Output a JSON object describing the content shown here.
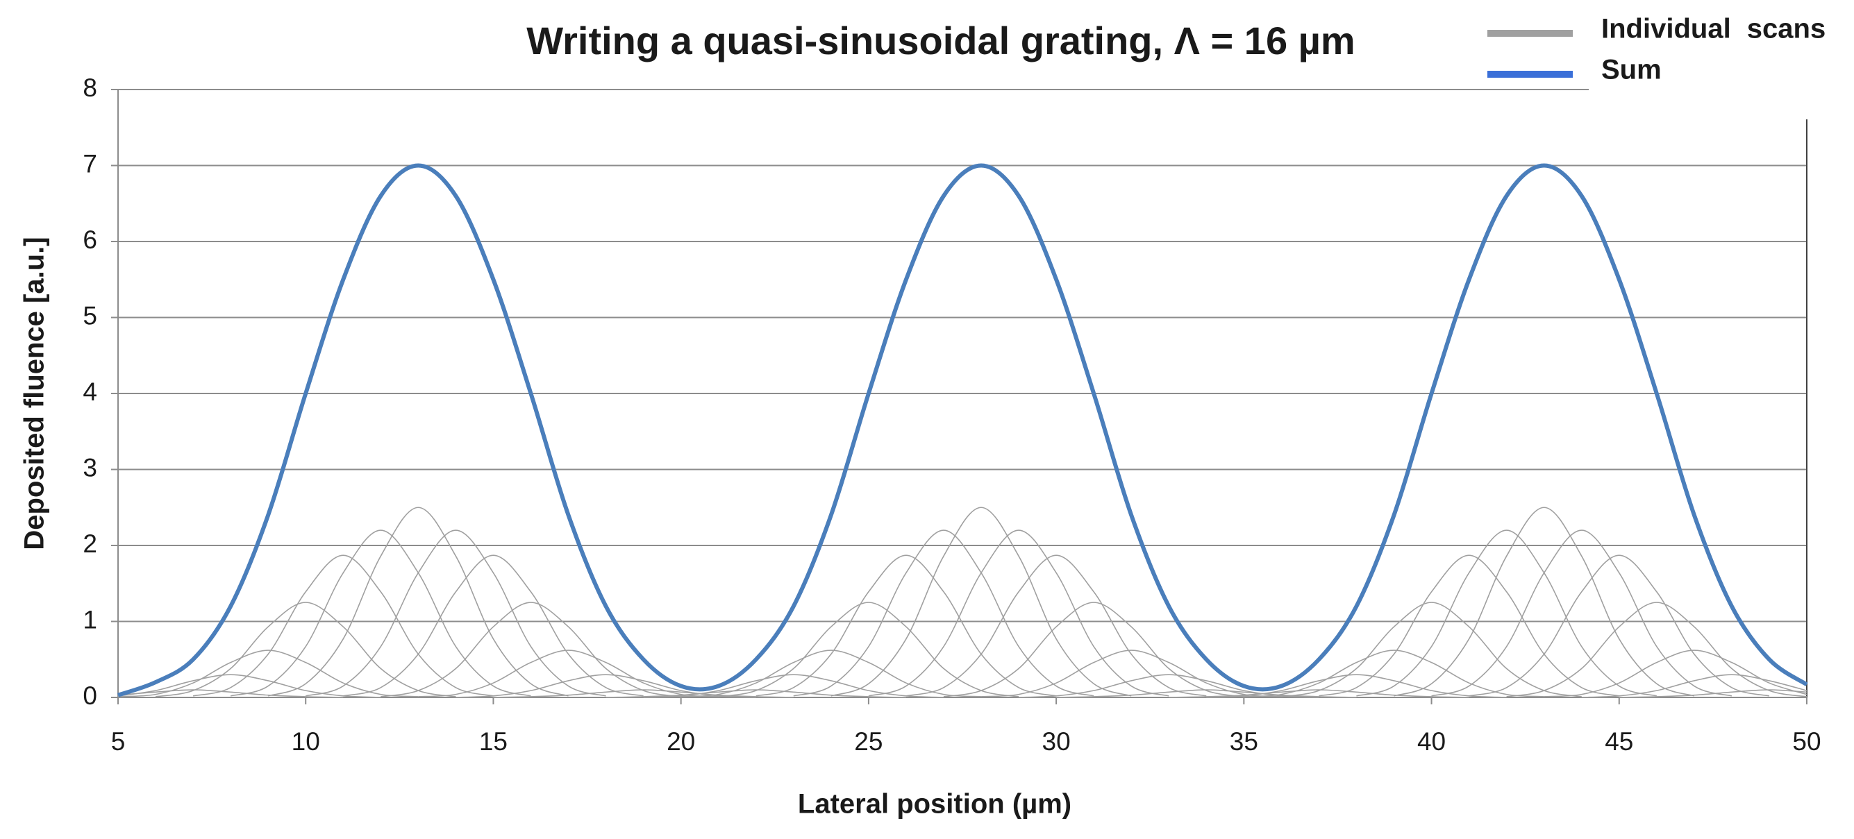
{
  "chart_data": {
    "type": "line",
    "title": "Writing a quasi-sinusoidal grating, Λ = 16 µm",
    "x_label": "Lateral position (µm)",
    "y_label": "Deposited fluence [a.u.]",
    "xlim": [
      5,
      50
    ],
    "xticks": [
      5,
      10,
      15,
      20,
      25,
      30,
      35,
      40,
      45,
      50
    ],
    "ylim": [
      0,
      8
    ],
    "yticks": [
      0,
      1,
      2,
      3,
      4,
      5,
      6,
      7,
      8
    ],
    "grid": true,
    "legend": "top-right",
    "series": [
      {
        "name": "Individual scans",
        "color": "#a0a0a0",
        "scans": [
          {
            "x": [
              5,
              6,
              7,
              8,
              9,
              10,
              11
            ],
            "values": [
              0.03,
              0.07,
              0.1,
              0.07,
              0.03,
              0.01,
              0
            ]
          },
          {
            "x": [
              5,
              6,
              7,
              8,
              9,
              10,
              11,
              12
            ],
            "values": [
              0.02,
              0.09,
              0.22,
              0.3,
              0.22,
              0.09,
              0.02,
              0
            ]
          },
          {
            "x": [
              5,
              6,
              7,
              8,
              9,
              10,
              11,
              12,
              13
            ],
            "values": [
              0.01,
              0.04,
              0.19,
              0.46,
              0.62,
              0.46,
              0.19,
              0.04,
              0.01
            ]
          },
          {
            "x": [
              6,
              7,
              8,
              9,
              10,
              11,
              12,
              13,
              14
            ],
            "values": [
              0.01,
              0.09,
              0.38,
              0.93,
              1.25,
              0.93,
              0.38,
              0.09,
              0.01
            ]
          },
          {
            "x": [
              7,
              8,
              9,
              10,
              11,
              12,
              13,
              14,
              15
            ],
            "values": [
              0.02,
              0.13,
              0.57,
              1.39,
              1.87,
              1.39,
              0.57,
              0.13,
              0.02
            ]
          },
          {
            "x": [
              8,
              9,
              10,
              11,
              12,
              13,
              14,
              15,
              16
            ],
            "values": [
              0.02,
              0.15,
              0.67,
              1.64,
              2.2,
              1.64,
              0.67,
              0.15,
              0.02
            ]
          },
          {
            "x": [
              9,
              10,
              11,
              12,
              13,
              14,
              15,
              16,
              17
            ],
            "values": [
              0.02,
              0.18,
              0.77,
              1.86,
              2.5,
              1.86,
              0.77,
              0.18,
              0.02
            ]
          },
          {
            "x": [
              10,
              11,
              12,
              13,
              14,
              15,
              16,
              17,
              18
            ],
            "values": [
              0.02,
              0.15,
              0.67,
              1.64,
              2.2,
              1.64,
              0.67,
              0.15,
              0.02
            ]
          },
          {
            "x": [
              11,
              12,
              13,
              14,
              15,
              16,
              17,
              18,
              19
            ],
            "values": [
              0.02,
              0.13,
              0.57,
              1.39,
              1.87,
              1.39,
              0.57,
              0.13,
              0.02
            ]
          },
          {
            "x": [
              12,
              13,
              14,
              15,
              16,
              17,
              18,
              19,
              20
            ],
            "values": [
              0.01,
              0.09,
              0.38,
              0.93,
              1.25,
              0.93,
              0.38,
              0.09,
              0.01
            ]
          },
          {
            "x": [
              13,
              14,
              15,
              16,
              17,
              18,
              19,
              20,
              21
            ],
            "values": [
              0.01,
              0.04,
              0.19,
              0.46,
              0.62,
              0.46,
              0.19,
              0.04,
              0.01
            ]
          },
          {
            "x": [
              14,
              15,
              16,
              17,
              18,
              19,
              20,
              21,
              22
            ],
            "values": [
              0,
              0.02,
              0.09,
              0.22,
              0.3,
              0.22,
              0.09,
              0.02,
              0
            ]
          },
          {
            "x": [
              15,
              16,
              17,
              18,
              19,
              20,
              21,
              22,
              23
            ],
            "values": [
              0,
              0.01,
              0.03,
              0.07,
              0.1,
              0.07,
              0.03,
              0.01,
              0
            ]
          },
          {
            "x": [
              18,
              19,
              20,
              21,
              22,
              23,
              24,
              25,
              26
            ],
            "values": [
              0,
              0.01,
              0.03,
              0.07,
              0.1,
              0.07,
              0.03,
              0.01,
              0
            ]
          },
          {
            "x": [
              19,
              20,
              21,
              22,
              23,
              24,
              25,
              26,
              27
            ],
            "values": [
              0,
              0.02,
              0.09,
              0.22,
              0.3,
              0.22,
              0.09,
              0.02,
              0
            ]
          },
          {
            "x": [
              20,
              21,
              22,
              23,
              24,
              25,
              26,
              27,
              28
            ],
            "values": [
              0.01,
              0.04,
              0.19,
              0.46,
              0.62,
              0.46,
              0.19,
              0.04,
              0.01
            ]
          },
          {
            "x": [
              21,
              22,
              23,
              24,
              25,
              26,
              27,
              28,
              29
            ],
            "values": [
              0.01,
              0.09,
              0.38,
              0.93,
              1.25,
              0.93,
              0.38,
              0.09,
              0.01
            ]
          },
          {
            "x": [
              22,
              23,
              24,
              25,
              26,
              27,
              28,
              29,
              30
            ],
            "values": [
              0.02,
              0.13,
              0.57,
              1.39,
              1.87,
              1.39,
              0.57,
              0.13,
              0.02
            ]
          },
          {
            "x": [
              23,
              24,
              25,
              26,
              27,
              28,
              29,
              30,
              31
            ],
            "values": [
              0.02,
              0.15,
              0.67,
              1.64,
              2.2,
              1.64,
              0.67,
              0.15,
              0.02
            ]
          },
          {
            "x": [
              24,
              25,
              26,
              27,
              28,
              29,
              30,
              31,
              32
            ],
            "values": [
              0.02,
              0.18,
              0.77,
              1.86,
              2.5,
              1.86,
              0.77,
              0.18,
              0.02
            ]
          },
          {
            "x": [
              25,
              26,
              27,
              28,
              29,
              30,
              31,
              32,
              33
            ],
            "values": [
              0.02,
              0.15,
              0.67,
              1.64,
              2.2,
              1.64,
              0.67,
              0.15,
              0.02
            ]
          },
          {
            "x": [
              26,
              27,
              28,
              29,
              30,
              31,
              32,
              33,
              34
            ],
            "values": [
              0.02,
              0.13,
              0.57,
              1.39,
              1.87,
              1.39,
              0.57,
              0.13,
              0.02
            ]
          },
          {
            "x": [
              27,
              28,
              29,
              30,
              31,
              32,
              33,
              34,
              35
            ],
            "values": [
              0.01,
              0.09,
              0.38,
              0.93,
              1.25,
              0.93,
              0.38,
              0.09,
              0.01
            ]
          },
          {
            "x": [
              28,
              29,
              30,
              31,
              32,
              33,
              34,
              35,
              36
            ],
            "values": [
              0.01,
              0.04,
              0.19,
              0.46,
              0.62,
              0.46,
              0.19,
              0.04,
              0.01
            ]
          },
          {
            "x": [
              29,
              30,
              31,
              32,
              33,
              34,
              35,
              36,
              37
            ],
            "values": [
              0,
              0.02,
              0.09,
              0.22,
              0.3,
              0.22,
              0.09,
              0.02,
              0
            ]
          },
          {
            "x": [
              30,
              31,
              32,
              33,
              34,
              35,
              36,
              37,
              38
            ],
            "values": [
              0,
              0.01,
              0.03,
              0.07,
              0.1,
              0.07,
              0.03,
              0.01,
              0
            ]
          },
          {
            "x": [
              33,
              34,
              35,
              36,
              37,
              38,
              39,
              40,
              41
            ],
            "values": [
              0,
              0.01,
              0.03,
              0.07,
              0.1,
              0.07,
              0.03,
              0.01,
              0
            ]
          },
          {
            "x": [
              34,
              35,
              36,
              37,
              38,
              39,
              40,
              41,
              42
            ],
            "values": [
              0,
              0.02,
              0.09,
              0.22,
              0.3,
              0.22,
              0.09,
              0.02,
              0
            ]
          },
          {
            "x": [
              35,
              36,
              37,
              38,
              39,
              40,
              41,
              42,
              43
            ],
            "values": [
              0.01,
              0.04,
              0.19,
              0.46,
              0.62,
              0.46,
              0.19,
              0.04,
              0.01
            ]
          },
          {
            "x": [
              36,
              37,
              38,
              39,
              40,
              41,
              42,
              43,
              44
            ],
            "values": [
              0.01,
              0.09,
              0.38,
              0.93,
              1.25,
              0.93,
              0.38,
              0.09,
              0.01
            ]
          },
          {
            "x": [
              37,
              38,
              39,
              40,
              41,
              42,
              43,
              44,
              45
            ],
            "values": [
              0.02,
              0.13,
              0.57,
              1.39,
              1.87,
              1.39,
              0.57,
              0.13,
              0.02
            ]
          },
          {
            "x": [
              38,
              39,
              40,
              41,
              42,
              43,
              44,
              45,
              46
            ],
            "values": [
              0.02,
              0.15,
              0.67,
              1.64,
              2.2,
              1.64,
              0.67,
              0.15,
              0.02
            ]
          },
          {
            "x": [
              39,
              40,
              41,
              42,
              43,
              44,
              45,
              46,
              47
            ],
            "values": [
              0.02,
              0.18,
              0.77,
              1.86,
              2.5,
              1.86,
              0.77,
              0.18,
              0.02
            ]
          },
          {
            "x": [
              40,
              41,
              42,
              43,
              44,
              45,
              46,
              47,
              48
            ],
            "values": [
              0.02,
              0.15,
              0.67,
              1.64,
              2.2,
              1.64,
              0.67,
              0.15,
              0.02
            ]
          },
          {
            "x": [
              41,
              42,
              43,
              44,
              45,
              46,
              47,
              48,
              49
            ],
            "values": [
              0.02,
              0.13,
              0.57,
              1.39,
              1.87,
              1.39,
              0.57,
              0.13,
              0.02
            ]
          },
          {
            "x": [
              42,
              43,
              44,
              45,
              46,
              47,
              48,
              49,
              50
            ],
            "values": [
              0.01,
              0.09,
              0.38,
              0.93,
              1.25,
              0.93,
              0.38,
              0.09,
              0.01
            ]
          },
          {
            "x": [
              43,
              44,
              45,
              46,
              47,
              48,
              49,
              50
            ],
            "values": [
              0.01,
              0.04,
              0.19,
              0.46,
              0.62,
              0.46,
              0.19,
              0.04
            ]
          },
          {
            "x": [
              44,
              45,
              46,
              47,
              48,
              49,
              50
            ],
            "values": [
              0,
              0.02,
              0.09,
              0.22,
              0.3,
              0.22,
              0.09
            ]
          },
          {
            "x": [
              45,
              46,
              47,
              48,
              49,
              50
            ],
            "values": [
              0,
              0.01,
              0.03,
              0.07,
              0.1,
              0.07
            ]
          }
        ]
      },
      {
        "name": "Sum",
        "color": "#4a7ebb",
        "x": [
          5,
          6,
          7,
          8,
          9,
          10,
          11,
          12,
          13,
          14,
          15,
          16,
          17,
          18,
          19,
          20,
          21,
          22,
          23,
          24,
          25,
          26,
          27,
          28,
          29,
          30,
          31,
          32,
          33,
          34,
          35,
          36,
          37,
          38,
          39,
          40,
          41,
          42,
          43,
          44,
          45,
          46,
          47,
          48,
          49,
          50
        ],
        "values": [
          0.03,
          0.2,
          0.5,
          1.2,
          2.4,
          4.0,
          5.5,
          6.6,
          7,
          6.6,
          5.5,
          4.0,
          2.4,
          1.2,
          0.5,
          0.15,
          0.15,
          0.5,
          1.2,
          2.4,
          4.0,
          5.5,
          6.6,
          7,
          6.6,
          5.5,
          4.0,
          2.4,
          1.2,
          0.5,
          0.15,
          0.15,
          0.5,
          1.2,
          2.4,
          4.0,
          5.5,
          6.6,
          7,
          6.6,
          5.5,
          4.0,
          2.4,
          1.2,
          0.5,
          0.17
        ]
      }
    ]
  }
}
